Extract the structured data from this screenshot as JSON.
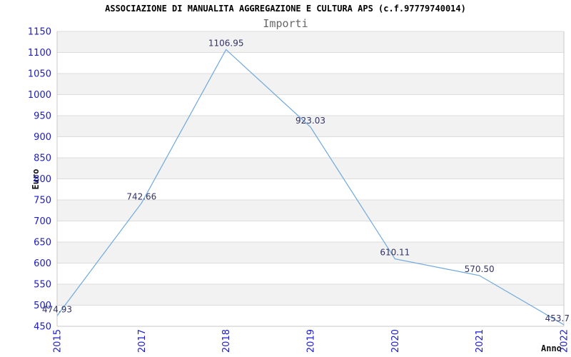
{
  "header": {
    "title": "ASSOCIAZIONE DI MANUALITA AGGREGAZIONE E CULTURA APS (c.f.97779740014)",
    "subtitle": "Importi"
  },
  "chart_data": {
    "type": "line",
    "title": "ASSOCIAZIONE DI MANUALITA AGGREGAZIONE E CULTURA APS (c.f.97779740014)",
    "subtitle": "Importi",
    "xlabel": "Anno",
    "ylabel": "Euro",
    "categories": [
      "2015",
      "2017",
      "2018",
      "2019",
      "2020",
      "2021",
      "2022"
    ],
    "series": [
      {
        "name": "Importi",
        "values": [
          474.93,
          742.66,
          1106.95,
          923.03,
          610.11,
          570.5,
          453.7
        ]
      }
    ],
    "point_labels": [
      "474.93",
      "742.66",
      "1106.95",
      "923.03",
      "610.11",
      "570.50",
      "453.7"
    ],
    "ylim": [
      450,
      1150
    ],
    "ytick_step": 50,
    "grid": "horizontal-bands",
    "legend": "none",
    "colors": {
      "line": "#6fa8dc",
      "tick_label": "#1a1acc",
      "point_label": "#333366",
      "band": "#f2f2f2",
      "gridline": "#dcdcdc",
      "axis": "#c8c8c8",
      "title": "#000000",
      "subtitle": "#666666",
      "axis_title": "#111111",
      "background": "#ffffff"
    }
  }
}
